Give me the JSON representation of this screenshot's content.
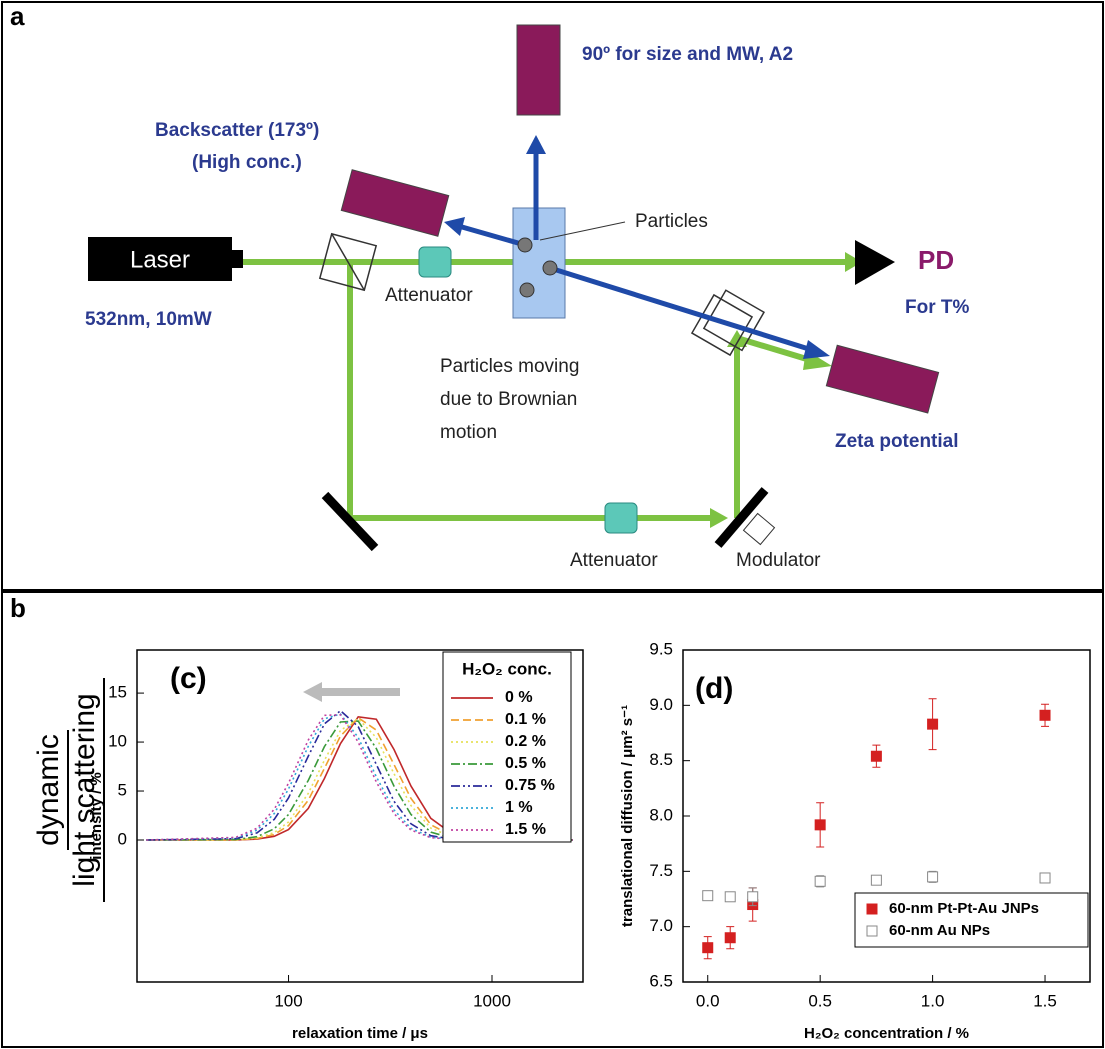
{
  "diagram": {
    "panel_label": "a",
    "laser": "Laser",
    "laser_spec": "532nm, 10mW",
    "attenuator_1": "Attenuator",
    "attenuator_2": "Attenuator",
    "particles": "Particles",
    "detector_90": "90º for size and MW, A2",
    "backscatter": "Backscatter (173º)",
    "backscatter_note": "(High conc.)",
    "pd": "PD",
    "pd_note": "For T%",
    "brownian": [
      "Particles moving",
      "due to Brownian",
      "motion"
    ],
    "zeta": "Zeta potential",
    "modulator": "Modulator"
  },
  "panel_b": {
    "panel_label": "b",
    "side_label": [
      "dynamic",
      "light scattering"
    ]
  },
  "chart_data": [
    {
      "type": "line",
      "title": "(c)",
      "x_label": "relaxation time / μs",
      "y_label": "intensity / %",
      "legend_title": "H₂O₂ conc.",
      "xlog": true,
      "xlim": [
        18,
        2800
      ],
      "ylim": [
        -14.5,
        19.4
      ],
      "xticks": [
        100,
        1000
      ],
      "yticks": [
        0,
        5,
        10,
        15
      ],
      "x": [
        20,
        55,
        70,
        85,
        100,
        125,
        150,
        180,
        220,
        270,
        330,
        400,
        500,
        650,
        800,
        2500
      ],
      "series": [
        {
          "name": "0 %",
          "color": "#c0282a",
          "dash": "solid",
          "values": [
            0,
            0,
            0.09,
            0.38,
            1.06,
            3.23,
            6.28,
            9.85,
            12.58,
            12.33,
            9.24,
            5.5,
            2.22,
            0.5,
            0.11,
            0
          ]
        },
        {
          "name": "0.1 %",
          "color": "#f0a030",
          "dash": "dashed",
          "values": [
            0,
            0,
            0.15,
            0.56,
            1.47,
            4.06,
            7.31,
            10.62,
            12.49,
            11.22,
            7.71,
            4.24,
            1.56,
            0.32,
            0.07,
            0
          ]
        },
        {
          "name": "0.2 %",
          "color": "#e6e05a",
          "dash": "dotted",
          "values": [
            0,
            0,
            0.2,
            0.75,
            1.84,
            4.77,
            8.14,
            11.19,
            12.39,
            10.46,
            6.77,
            3.51,
            1.21,
            0.23,
            0.04,
            0
          ]
        },
        {
          "name": "0.5 %",
          "color": "#3a9a3a",
          "dash": "dashdot",
          "values": [
            0,
            0.05,
            0.34,
            1.14,
            2.6,
            6.08,
            9.54,
            12.05,
            12.14,
            9.34,
            5.5,
            2.6,
            0.81,
            0.13,
            0,
            0
          ]
        },
        {
          "name": "0.75 %",
          "color": "#2a2a9a",
          "dash": "dashdotdot",
          "values": [
            0,
            0.13,
            0.72,
            2.1,
            4.29,
            8.57,
            11.85,
            13.2,
            11.58,
            7.72,
            3.95,
            1.65,
            0.44,
            0.06,
            0,
            0
          ]
        },
        {
          "name": "1 %",
          "color": "#30a8d8",
          "dash": "dotted",
          "values": [
            0,
            0.2,
            1.0,
            2.7,
            5.21,
            9.57,
            12.37,
            12.86,
            10.47,
            6.46,
            3.07,
            1.19,
            0.29,
            0.04,
            0,
            0
          ]
        },
        {
          "name": "1.5 %",
          "color": "#c040a0",
          "dash": "dotted",
          "values": [
            0,
            0.26,
            1.2,
            3.12,
            5.8,
            10.21,
            12.73,
            12.78,
            10.0,
            5.93,
            2.7,
            1.01,
            0.24,
            0.03,
            0,
            0
          ]
        }
      ]
    },
    {
      "type": "errorscatter",
      "title": "(d)",
      "x_label": "H₂O₂ concentration / %",
      "y_label": "translational diffusion / μm² s⁻¹",
      "xlim": [
        -0.11,
        1.7
      ],
      "ylim": [
        6.5,
        9.5
      ],
      "xticks": [
        {
          "value": 0,
          "label": "0.0"
        },
        0.5,
        {
          "value": 1,
          "label": "1.0"
        },
        1.5
      ],
      "yticks": [
        6.5,
        {
          "value": 7,
          "label": "7.0"
        },
        7.5,
        {
          "value": 8,
          "label": "8.0"
        },
        8.5,
        {
          "value": 9,
          "label": "9.0"
        },
        9.5
      ],
      "x": [
        0,
        0.1,
        0.2,
        0.5,
        0.75,
        1,
        1.5
      ],
      "series": [
        {
          "name": "60-nm Pt-Pt-Au JNPs",
          "color": "#d42020",
          "filled": true,
          "values": [
            6.81,
            6.9,
            7.2,
            7.92,
            8.54,
            8.83,
            8.91
          ],
          "errors": [
            0.1,
            0.1,
            0.15,
            0.2,
            0.1,
            0.23,
            0.1
          ]
        },
        {
          "name": "60-nm Au NPs",
          "color": "#888888",
          "filled": false,
          "values": [
            7.28,
            7.27,
            7.27,
            7.41,
            7.42,
            7.45,
            7.44
          ],
          "errors": [
            0.03,
            0.03,
            0.08,
            0.05,
            0.03,
            0.05,
            0.03
          ]
        }
      ]
    }
  ]
}
